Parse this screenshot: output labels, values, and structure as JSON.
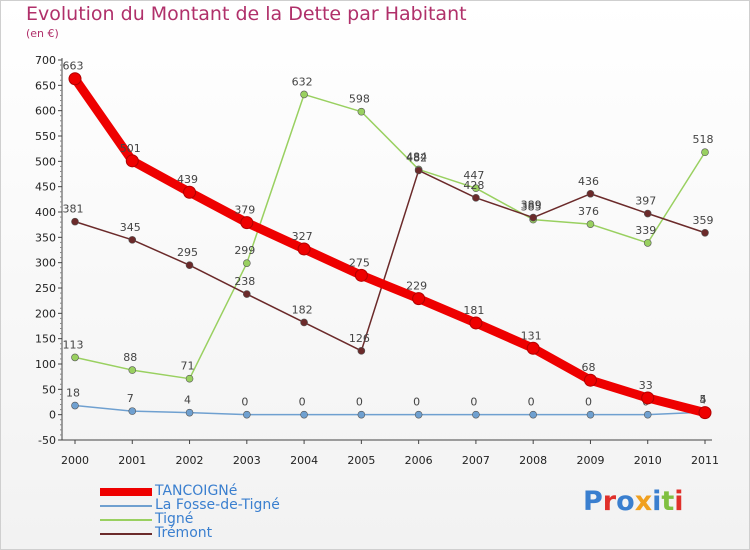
{
  "header": {
    "title": "Evolution du Montant de la Dette par Habitant",
    "subtitle": "(en €)"
  },
  "brand": {
    "text": "Proxiti"
  },
  "chart_data": {
    "type": "line",
    "title": "Evolution du Montant de la Dette par Habitant",
    "subtitle": "(en €)",
    "x": [
      "2000",
      "2001",
      "2002",
      "2003",
      "2004",
      "2005",
      "2006",
      "2007",
      "2008",
      "2009",
      "2010",
      "2011"
    ],
    "ylim": [
      -50,
      700
    ],
    "yticks": [
      -50,
      0,
      50,
      100,
      150,
      200,
      250,
      300,
      350,
      400,
      450,
      500,
      550,
      600,
      650,
      700
    ],
    "grid": false,
    "legend_position": "bottom-left",
    "series": [
      {
        "name": "TANCOIGNé",
        "color": "#ee0000",
        "values": [
          663,
          501,
          439,
          379,
          327,
          275,
          229,
          181,
          131,
          68,
          33,
          4
        ]
      },
      {
        "name": "La Fosse-de-Tigné",
        "color": "#6fa0d0",
        "values": [
          18,
          7,
          4,
          0,
          0,
          0,
          0,
          0,
          0,
          0,
          0,
          5
        ]
      },
      {
        "name": "Tigné",
        "color": "#99d060",
        "values": [
          113,
          88,
          71,
          299,
          632,
          598,
          484,
          447,
          385,
          376,
          339,
          518
        ]
      },
      {
        "name": "Trémont",
        "color": "#6b2a2a",
        "values": [
          381,
          345,
          295,
          238,
          182,
          126,
          482,
          428,
          389,
          436,
          397,
          359
        ]
      }
    ]
  }
}
